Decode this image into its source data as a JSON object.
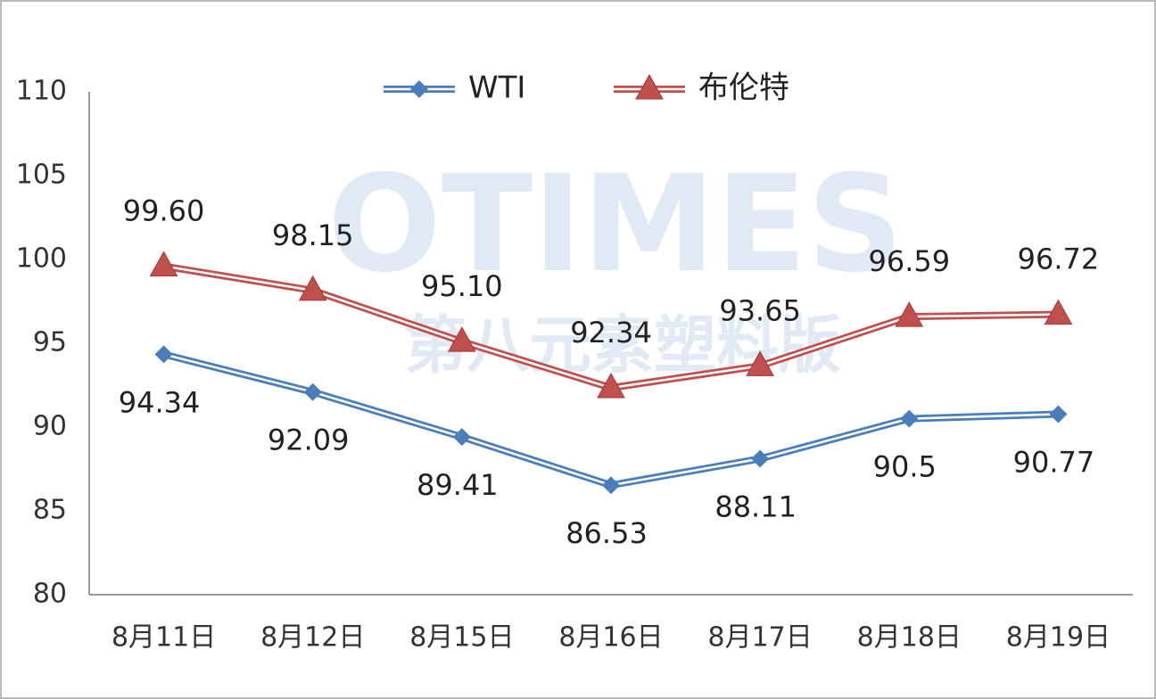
{
  "chart_data": {
    "type": "line",
    "watermark": "OTIMES",
    "watermark_subtitle": "第八元素塑料版",
    "categories": [
      "8月11日",
      "8月12日",
      "8月15日",
      "8月16日",
      "8月17日",
      "8月18日",
      "8月19日"
    ],
    "series": [
      {
        "name": "WTI",
        "color": "#4a7ebb",
        "marker": "diamond",
        "label_position": "below",
        "values": [
          94.34,
          92.09,
          89.41,
          86.53,
          88.11,
          90.5,
          90.77
        ]
      },
      {
        "name": "布伦特",
        "color": "#c0504d",
        "marker": "triangle",
        "label_position": "above",
        "values": [
          99.6,
          98.15,
          95.1,
          92.34,
          93.65,
          96.59,
          96.72
        ],
        "value_labels": [
          "99.60",
          "98.15",
          "95.10",
          "92.34",
          "93.65",
          "96.59",
          "96.72"
        ]
      }
    ],
    "ylim": [
      80,
      110
    ],
    "yticks": [
      80,
      85,
      90,
      95,
      100,
      105,
      110
    ],
    "grid": false,
    "legend": "top"
  }
}
